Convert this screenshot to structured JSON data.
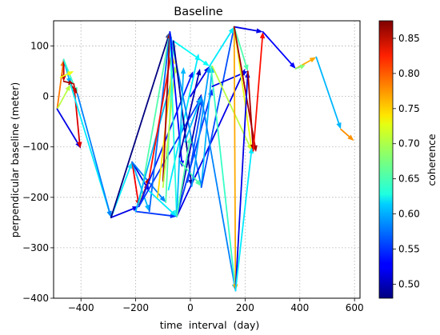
{
  "chart_data": {
    "type": "network-arrows",
    "title": "Baseline",
    "xlabel": "time  interval  (day)",
    "ylabel": "perpendicular baseline (meter)",
    "xlim": [
      -500,
      620
    ],
    "ylim": [
      -400,
      150
    ],
    "xticks": [
      -400,
      -200,
      0,
      200,
      400,
      600
    ],
    "yticks": [
      100,
      0,
      -100,
      -200,
      -300,
      -400
    ],
    "xtick_labels": [
      "−400",
      "−200",
      "0",
      "200",
      "400",
      "600"
    ],
    "ytick_labels": [
      "100",
      "0",
      "−100",
      "−200",
      "−300",
      "−400"
    ],
    "grid": true,
    "colorbar": {
      "label": "coherence",
      "min": 0.48,
      "max": 0.875,
      "ticks": [
        0.85,
        0.8,
        0.75,
        0.7,
        0.65,
        0.6,
        0.55,
        0.5
      ],
      "tick_labels": [
        "0.85",
        "0.80",
        "0.75",
        "0.70",
        "0.65",
        "0.60",
        "0.55",
        "0.50"
      ],
      "colormap": "jet"
    },
    "arrows": [
      {
        "x1": -487,
        "y1": -25,
        "x2": -463,
        "y2": 73,
        "c": 0.78
      },
      {
        "x1": -487,
        "y1": -25,
        "x2": -438,
        "y2": 24,
        "c": 0.7
      },
      {
        "x1": -487,
        "y1": -25,
        "x2": -400,
        "y2": -103,
        "c": 0.52
      },
      {
        "x1": -463,
        "y1": 73,
        "x2": -463,
        "y2": 30,
        "c": 0.85
      },
      {
        "x1": -463,
        "y1": 73,
        "x2": -438,
        "y2": 24,
        "c": 0.6
      },
      {
        "x1": -463,
        "y1": 73,
        "x2": -413,
        "y2": 5,
        "c": 0.65
      },
      {
        "x1": -475,
        "y1": 38,
        "x2": -426,
        "y2": 50,
        "c": 0.72
      },
      {
        "x1": -463,
        "y1": 30,
        "x2": -426,
        "y2": 25,
        "c": 0.86
      },
      {
        "x1": -438,
        "y1": 24,
        "x2": -413,
        "y2": 5,
        "c": 0.86
      },
      {
        "x1": -426,
        "y1": 25,
        "x2": -403,
        "y2": -103,
        "c": 0.84
      },
      {
        "x1": -438,
        "y1": 24,
        "x2": -290,
        "y2": -240,
        "c": 0.62
      },
      {
        "x1": -413,
        "y1": 5,
        "x2": -290,
        "y2": -240,
        "c": 0.58
      },
      {
        "x1": -290,
        "y1": -240,
        "x2": -213,
        "y2": -130,
        "c": 0.62
      },
      {
        "x1": -290,
        "y1": -240,
        "x2": -188,
        "y2": -218,
        "c": 0.52
      },
      {
        "x1": -290,
        "y1": -240,
        "x2": -75,
        "y2": 128,
        "c": 0.48
      },
      {
        "x1": -213,
        "y1": -130,
        "x2": -188,
        "y2": -218,
        "c": 0.83
      },
      {
        "x1": -213,
        "y1": -130,
        "x2": -150,
        "y2": -228,
        "c": 0.6
      },
      {
        "x1": -213,
        "y1": -130,
        "x2": -150,
        "y2": -188,
        "c": 0.52
      },
      {
        "x1": -213,
        "y1": -130,
        "x2": -90,
        "y2": -210,
        "c": 0.58
      },
      {
        "x1": -188,
        "y1": -218,
        "x2": -75,
        "y2": 128,
        "c": 0.66
      },
      {
        "x1": -188,
        "y1": -218,
        "x2": -150,
        "y2": -160,
        "c": 0.85
      },
      {
        "x1": -200,
        "y1": -228,
        "x2": -50,
        "y2": -238,
        "c": 0.55
      },
      {
        "x1": -200,
        "y1": -228,
        "x2": -55,
        "y2": 60,
        "c": 0.6
      },
      {
        "x1": -188,
        "y1": -218,
        "x2": 10,
        "y2": 50,
        "c": 0.54
      },
      {
        "x1": -188,
        "y1": -218,
        "x2": 40,
        "y2": -2,
        "c": 0.55
      },
      {
        "x1": -150,
        "y1": -228,
        "x2": -75,
        "y2": 128,
        "c": 0.57
      },
      {
        "x1": -150,
        "y1": -160,
        "x2": -62,
        "y2": 110,
        "c": 0.82
      },
      {
        "x1": -150,
        "y1": -188,
        "x2": -50,
        "y2": -238,
        "c": 0.62
      },
      {
        "x1": -120,
        "y1": -200,
        "x2": -62,
        "y2": 78,
        "c": 0.74
      },
      {
        "x1": -100,
        "y1": -168,
        "x2": -75,
        "y2": 128,
        "c": 0.86
      },
      {
        "x1": -90,
        "y1": -210,
        "x2": -62,
        "y2": 110,
        "c": 0.66
      },
      {
        "x1": -100,
        "y1": -180,
        "x2": -55,
        "y2": 60,
        "c": 0.7
      },
      {
        "x1": -80,
        "y1": -185,
        "x2": 30,
        "y2": 85,
        "c": 0.62
      },
      {
        "x1": -75,
        "y1": 128,
        "x2": -50,
        "y2": -238,
        "c": 0.64
      },
      {
        "x1": -75,
        "y1": 128,
        "x2": 40,
        "y2": -180,
        "c": 0.58
      },
      {
        "x1": -75,
        "y1": 128,
        "x2": -30,
        "y2": -140,
        "c": 0.53
      },
      {
        "x1": -62,
        "y1": 110,
        "x2": 70,
        "y2": 60,
        "c": 0.63
      },
      {
        "x1": -62,
        "y1": 110,
        "x2": 5,
        "y2": -178,
        "c": 0.49
      },
      {
        "x1": -50,
        "y1": -238,
        "x2": -25,
        "y2": 58,
        "c": 0.6
      },
      {
        "x1": -50,
        "y1": -238,
        "x2": 40,
        "y2": 5,
        "c": 0.5
      },
      {
        "x1": -50,
        "y1": -238,
        "x2": 80,
        "y2": 15,
        "c": 0.55
      },
      {
        "x1": -50,
        "y1": -238,
        "x2": 200,
        "y2": 55,
        "c": 0.52
      },
      {
        "x1": -50,
        "y1": -238,
        "x2": 0,
        "y2": -80,
        "c": 0.66
      },
      {
        "x1": -40,
        "y1": -120,
        "x2": 35,
        "y2": 55,
        "c": 0.5
      },
      {
        "x1": -35,
        "y1": -130,
        "x2": 40,
        "y2": -178,
        "c": 0.66
      },
      {
        "x1": -20,
        "y1": -90,
        "x2": 40,
        "y2": 0,
        "c": 0.6
      },
      {
        "x1": -10,
        "y1": -170,
        "x2": 45,
        "y2": -5,
        "c": 0.56
      },
      {
        "x1": 0,
        "y1": 0,
        "x2": 70,
        "y2": 60,
        "c": 0.52
      },
      {
        "x1": 5,
        "y1": -178,
        "x2": 70,
        "y2": 60,
        "c": 0.59
      },
      {
        "x1": 40,
        "y1": -180,
        "x2": 80,
        "y2": 60,
        "c": 0.6
      },
      {
        "x1": 40,
        "y1": -180,
        "x2": 160,
        "y2": 138,
        "c": 0.56
      },
      {
        "x1": 40,
        "y1": 0,
        "x2": 165,
        "y2": -385,
        "c": 0.58
      },
      {
        "x1": 70,
        "y1": 60,
        "x2": 160,
        "y2": 138,
        "c": 0.62
      },
      {
        "x1": 75,
        "y1": 60,
        "x2": 165,
        "y2": -385,
        "c": 0.65
      },
      {
        "x1": 80,
        "y1": 20,
        "x2": 210,
        "y2": 50,
        "c": 0.52
      },
      {
        "x1": 80,
        "y1": 60,
        "x2": 225,
        "y2": -108,
        "c": 0.7
      },
      {
        "x1": 160,
        "y1": 138,
        "x2": 165,
        "y2": -385,
        "c": 0.76
      },
      {
        "x1": 160,
        "y1": 138,
        "x2": 265,
        "y2": 128,
        "c": 0.52
      },
      {
        "x1": 160,
        "y1": 138,
        "x2": 225,
        "y2": -108,
        "c": 0.72
      },
      {
        "x1": 160,
        "y1": 138,
        "x2": 210,
        "y2": 50,
        "c": 0.66
      },
      {
        "x1": 160,
        "y1": 138,
        "x2": 240,
        "y2": -110,
        "c": 0.86
      },
      {
        "x1": 165,
        "y1": -385,
        "x2": 210,
        "y2": 50,
        "c": 0.52
      },
      {
        "x1": 165,
        "y1": -385,
        "x2": 225,
        "y2": -100,
        "c": 0.62
      },
      {
        "x1": 210,
        "y1": 50,
        "x2": 230,
        "y2": -108,
        "c": 0.86
      },
      {
        "x1": 230,
        "y1": -108,
        "x2": 265,
        "y2": 128,
        "c": 0.82
      },
      {
        "x1": 265,
        "y1": 128,
        "x2": 385,
        "y2": 55,
        "c": 0.53
      },
      {
        "x1": 385,
        "y1": 55,
        "x2": 460,
        "y2": 78,
        "c": 0.76
      },
      {
        "x1": 385,
        "y1": 55,
        "x2": 420,
        "y2": 62,
        "c": 0.68
      },
      {
        "x1": 460,
        "y1": 78,
        "x2": 550,
        "y2": -65,
        "c": 0.6
      },
      {
        "x1": 550,
        "y1": -65,
        "x2": 598,
        "y2": -88,
        "c": 0.77
      }
    ]
  }
}
